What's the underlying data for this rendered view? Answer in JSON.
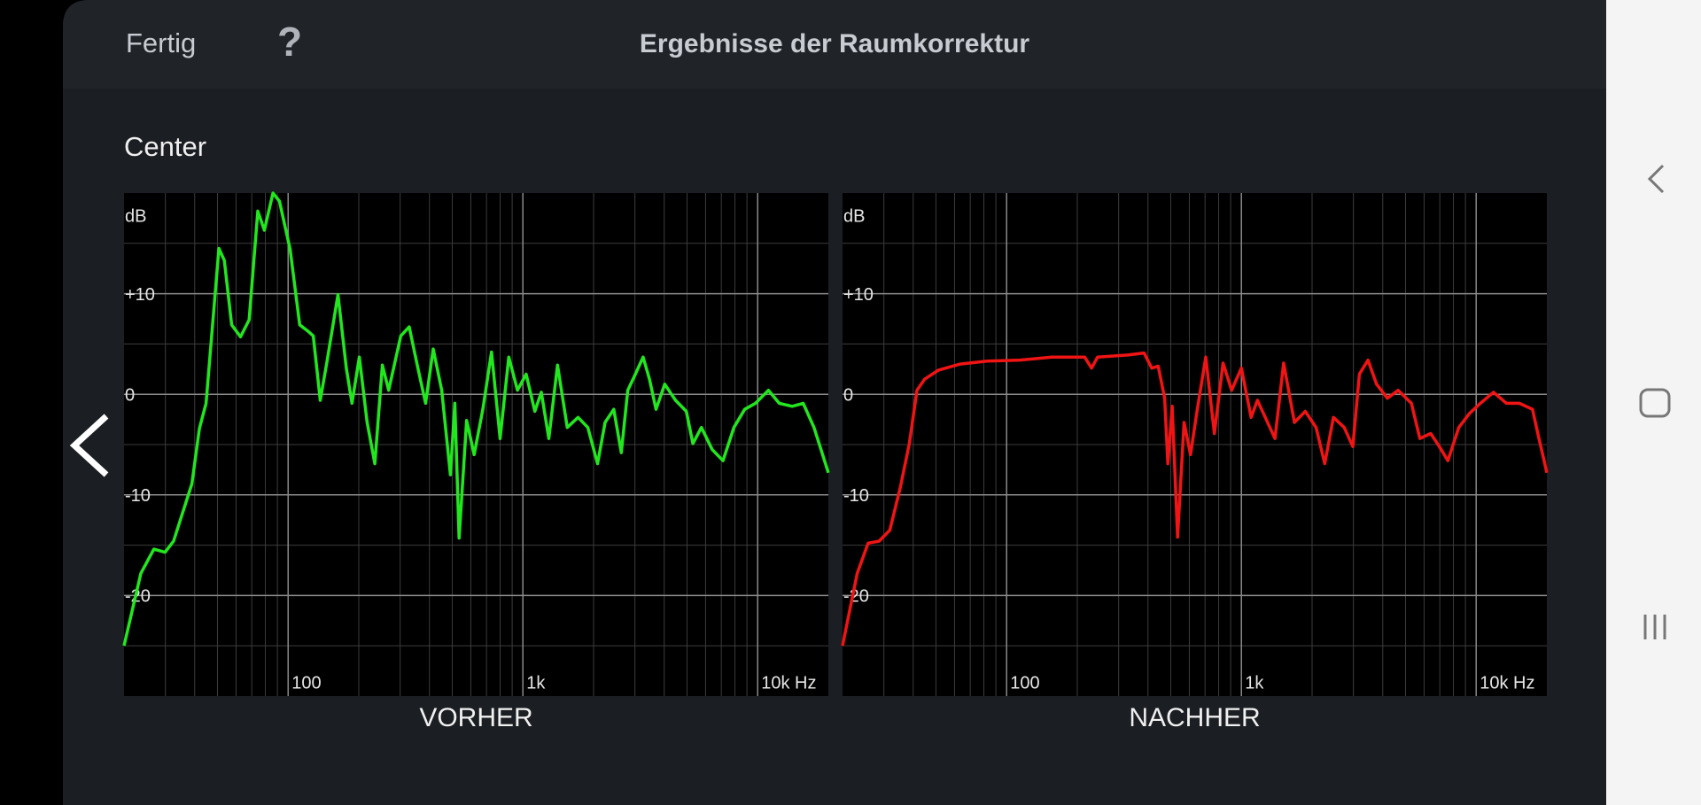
{
  "header": {
    "done": "Fertig",
    "help": "?",
    "title": "Ergebnisse der Raumkorrektur"
  },
  "section": "Center",
  "chart_data": [
    {
      "type": "line",
      "title": "VORHER",
      "ylabel": "dB",
      "xscale": "log",
      "grid": true,
      "xlim": [
        20,
        20000
      ],
      "ylim": [
        -30,
        20
      ],
      "xticks": [
        100,
        {
          "value": 1000,
          "label": "1k"
        },
        {
          "value": 10000,
          "label": "10k Hz"
        }
      ],
      "x_minor_ticks": [
        30,
        40,
        50,
        60,
        70,
        80,
        90,
        200,
        300,
        400,
        500,
        600,
        700,
        800,
        900,
        2000,
        3000,
        4000,
        5000,
        6000,
        7000,
        8000,
        9000
      ],
      "yticks": [
        {
          "value": 10,
          "label": "+10"
        },
        0,
        -10,
        -20
      ],
      "y_minor_ticks": [
        15,
        5,
        -5,
        -15,
        -25
      ],
      "x": [
        20,
        23.6,
        26.8,
        29.9,
        32.5,
        38.9,
        41.9,
        44.7,
        50.7,
        53.5,
        57.5,
        62.7,
        68.2,
        74.3,
        79.2,
        86.2,
        91.8,
        102,
        112,
        121,
        128,
        137,
        146,
        163,
        177,
        187,
        201,
        217,
        234,
        252,
        268,
        302,
        328,
        357,
        385,
        415,
        451,
        491,
        513,
        535,
        576,
        620,
        675,
        735,
        800,
        871,
        948,
        1032,
        1124,
        1198,
        1290,
        1404,
        1545,
        1718,
        1890,
        2079,
        2239,
        2438,
        2625,
        2798,
        3014,
        3251,
        3460,
        3690,
        4017,
        4467,
        4966,
        5296,
        5758,
        6400,
        7120,
        7920,
        8810,
        9790,
        11120,
        12360,
        14030,
        15620,
        17370,
        20000
      ],
      "series": [
        {
          "color": "#22e61e",
          "values": [
            -25,
            -17.8,
            -15.4,
            -15.7,
            -14.6,
            -8.9,
            -3.4,
            -0.9,
            14.5,
            13.3,
            6.9,
            5.7,
            7.4,
            18.2,
            16.3,
            20,
            19.2,
            14.4,
            6.9,
            6.3,
            5.8,
            -0.6,
            3.1,
            9.9,
            2.6,
            -0.9,
            3.7,
            -2.8,
            -6.9,
            2.9,
            0.4,
            5.8,
            6.7,
            2.6,
            -0.9,
            4.5,
            0.4,
            -8,
            -0.9,
            -14.3,
            -2.6,
            -6,
            -1.5,
            4.2,
            -4.4,
            3.7,
            0.4,
            2,
            -1.7,
            0.2,
            -4.4,
            2.9,
            -3.3,
            -2.3,
            -3.3,
            -6.9,
            -2.8,
            -1.5,
            -5.8,
            0.4,
            2,
            3.7,
            1.5,
            -1.5,
            1,
            -0.6,
            -1.7,
            -4.9,
            -3.3,
            -5.5,
            -6.6,
            -3.3,
            -1.5,
            -0.9,
            0.4,
            -0.9,
            -1.2,
            -0.9,
            -3.3,
            -7.8
          ]
        }
      ]
    },
    {
      "type": "line",
      "title": "NACHHER",
      "ylabel": "dB",
      "xscale": "log",
      "grid": true,
      "xlim": [
        20,
        20000
      ],
      "ylim": [
        -30,
        20
      ],
      "xticks": [
        100,
        {
          "value": 1000,
          "label": "1k"
        },
        {
          "value": 10000,
          "label": "10k Hz"
        }
      ],
      "x_minor_ticks": [
        30,
        40,
        50,
        60,
        70,
        80,
        90,
        200,
        300,
        400,
        500,
        600,
        700,
        800,
        900,
        2000,
        3000,
        4000,
        5000,
        6000,
        7000,
        8000,
        9000
      ],
      "yticks": [
        {
          "value": 10,
          "label": "+10"
        },
        0,
        -10,
        -20
      ],
      "y_minor_ticks": [
        15,
        5,
        -5,
        -15,
        -25
      ],
      "x": [
        20,
        23.1,
        25.7,
        28.6,
        31.8,
        35.3,
        38.5,
        41.5,
        44.7,
        51.3,
        63.4,
        82.6,
        114,
        156,
        215,
        230,
        244,
        328,
        385,
        415,
        442,
        471,
        486,
        507,
        535,
        570,
        607,
        647,
        705,
        767,
        835,
        909,
        1000,
        1100,
        1170,
        1390,
        1513,
        1683,
        1871,
        2079,
        2264,
        2466,
        2741,
        2984,
        3180,
        3460,
        3764,
        4186,
        4654,
        5296,
        5758,
        6400,
        6970,
        7580,
        8430,
        9370,
        10420,
        11850,
        13460,
        15280,
        17370,
        18300,
        20000
      ],
      "series": [
        {
          "color": "#f01414",
          "values": [
            -25,
            -17.8,
            -14.8,
            -14.6,
            -13.5,
            -9.2,
            -4.9,
            0.4,
            1.5,
            2.4,
            3,
            3.3,
            3.4,
            3.7,
            3.7,
            2.6,
            3.7,
            3.9,
            4.1,
            2.6,
            2.8,
            -0.4,
            -6.9,
            -1.2,
            -14.2,
            -2.8,
            -6,
            -1.7,
            3.7,
            -3.9,
            3.1,
            0.4,
            2.6,
            -2.3,
            -0.6,
            -4.4,
            3.1,
            -2.8,
            -1.7,
            -3.3,
            -6.9,
            -2.3,
            -3.3,
            -5.2,
            2,
            3.4,
            1,
            -0.4,
            0.4,
            -0.9,
            -4.4,
            -3.9,
            -5.2,
            -6.6,
            -3.3,
            -1.9,
            -0.9,
            0.2,
            -0.9,
            -0.9,
            -1.5,
            -3.9,
            -7.8
          ]
        }
      ]
    }
  ]
}
